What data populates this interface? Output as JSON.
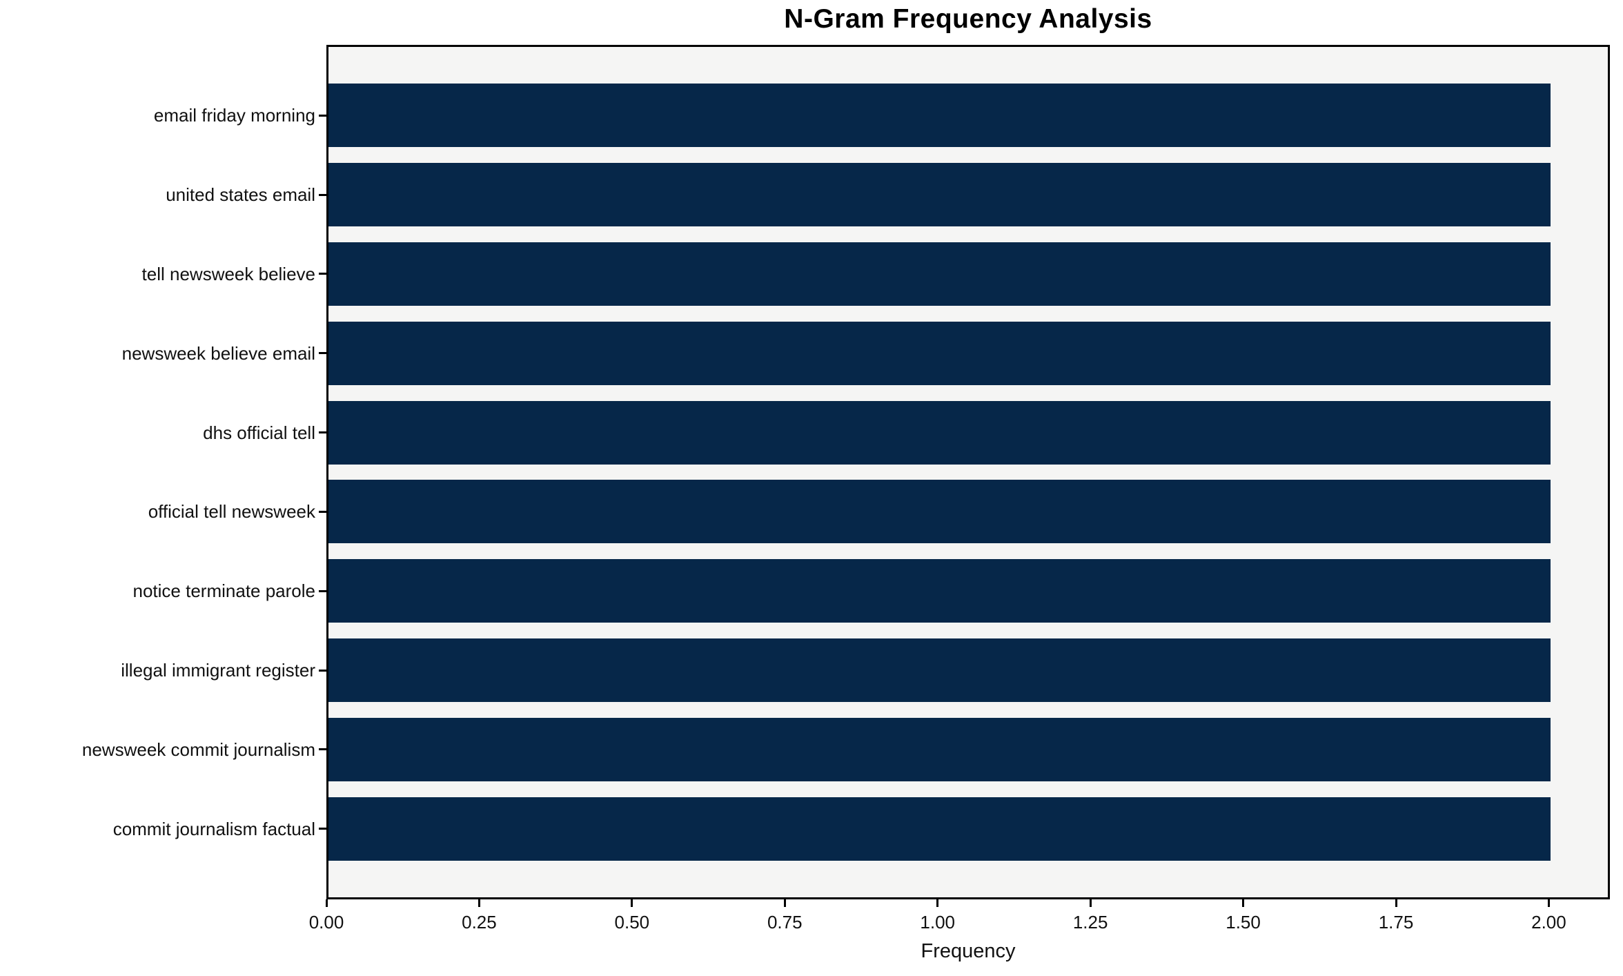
{
  "chart_data": {
    "type": "bar",
    "orientation": "horizontal",
    "title": "N-Gram Frequency Analysis",
    "xlabel": "Frequency",
    "ylabel": "",
    "categories": [
      "email friday morning",
      "united states email",
      "tell newsweek believe",
      "newsweek believe email",
      "dhs official tell",
      "official tell newsweek",
      "notice terminate parole",
      "illegal immigrant register",
      "newsweek commit journalism",
      "commit journalism factual"
    ],
    "values": [
      2,
      2,
      2,
      2,
      2,
      2,
      2,
      2,
      2,
      2
    ],
    "xlim": [
      0,
      2.1
    ],
    "xtick_labels": [
      "0.00",
      "0.25",
      "0.50",
      "0.75",
      "1.00",
      "1.25",
      "1.50",
      "1.75",
      "2.00"
    ],
    "xtick_values": [
      0,
      0.25,
      0.5,
      0.75,
      1,
      1.25,
      1.5,
      1.75,
      2
    ],
    "grid": false,
    "legend": null,
    "bar_color": "#062749",
    "plot_background": "#f5f5f4",
    "figure_background": "#ffffff",
    "spine_color": "#000000"
  }
}
